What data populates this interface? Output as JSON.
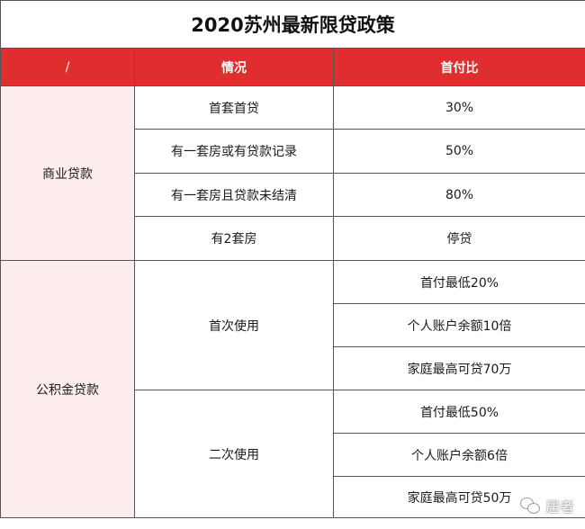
{
  "title": "2020苏州最新限贷政策",
  "header": {
    "col1": "/",
    "col2": "情况",
    "col3": "首付比"
  },
  "commercial": {
    "label": "商业贷款",
    "rows": [
      {
        "situation": "首套首贷",
        "ratio": "30%"
      },
      {
        "situation": "有一套房或有贷款记录",
        "ratio": "50%"
      },
      {
        "situation": "有一套房且贷款未结清",
        "ratio": "80%"
      },
      {
        "situation": "有2套房",
        "ratio": "停贷"
      }
    ]
  },
  "provident": {
    "label": "公积金贷款",
    "first": {
      "label": "首次使用",
      "items": [
        "首付最低20%",
        "个人账户余额10倍",
        "家庭最高可贷70万"
      ]
    },
    "second": {
      "label": "二次使用",
      "items": [
        "首付最低50%",
        "个人账户余额6倍",
        "家庭最高可贷50万"
      ]
    }
  },
  "watermark": {
    "icon": "wechat-icon",
    "text": "居者"
  }
}
